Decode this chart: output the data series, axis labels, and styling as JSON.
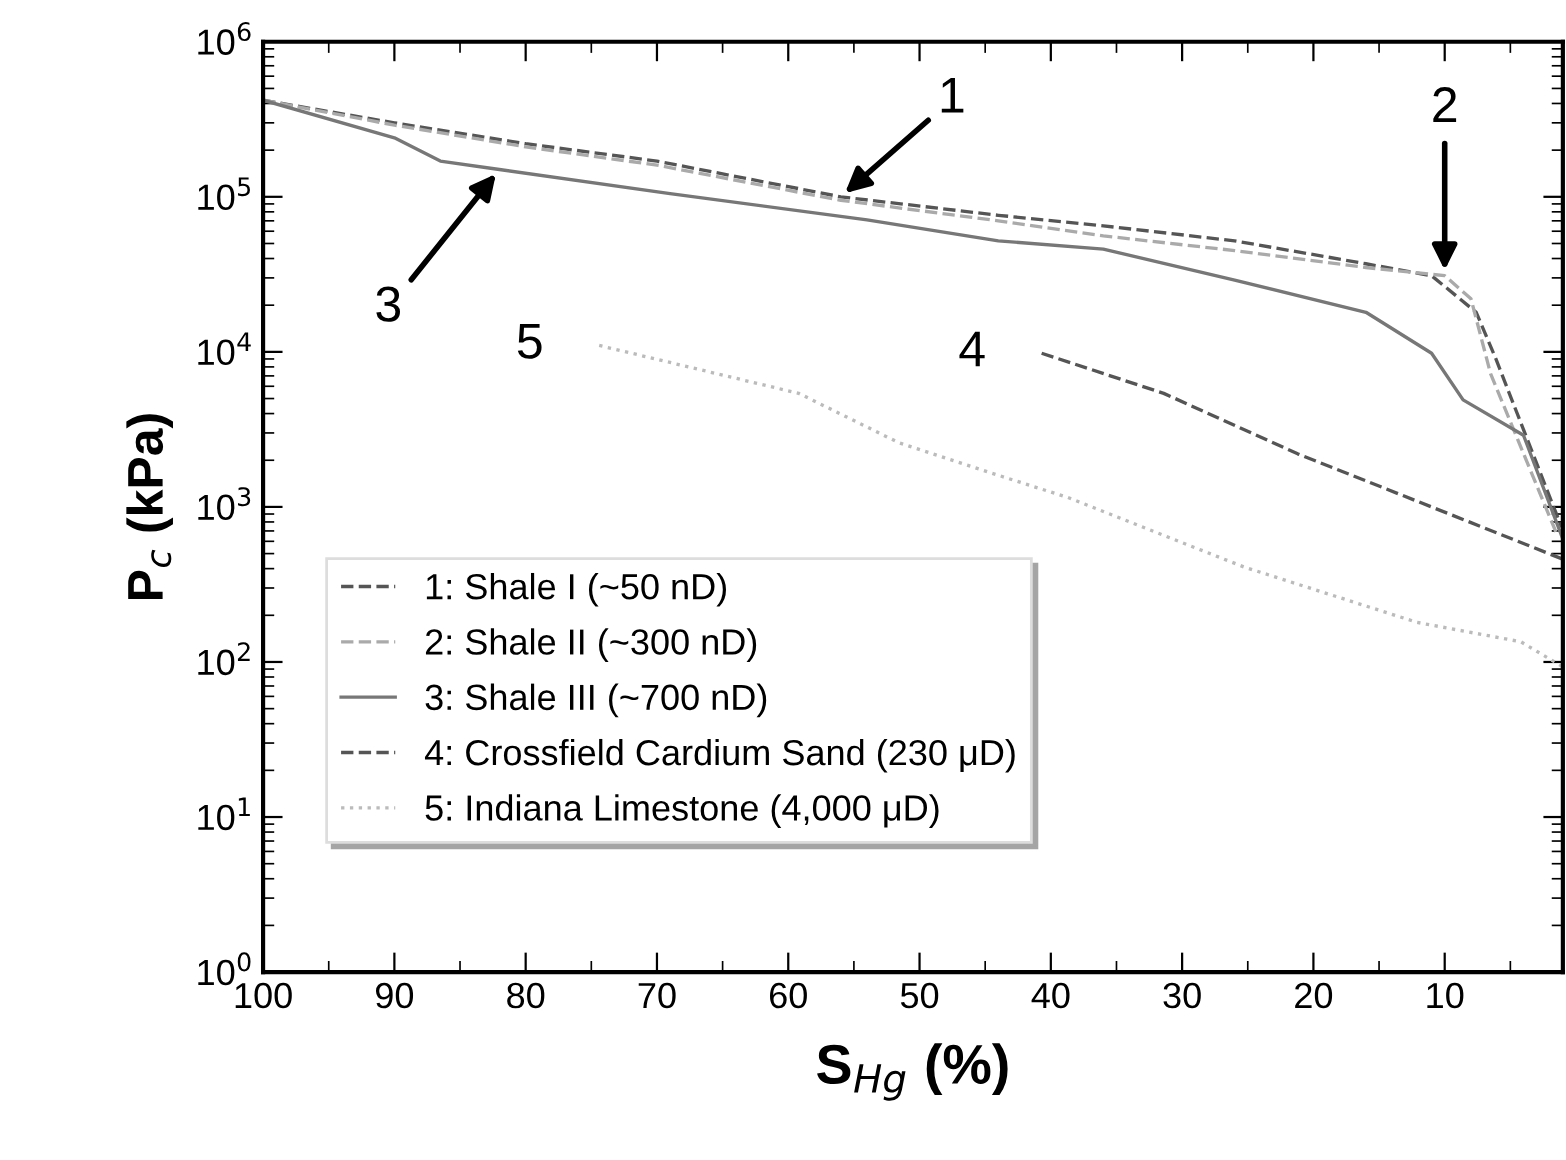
{
  "chart_data": {
    "type": "line",
    "xlabel": "S$_{Hg}$ (%)",
    "ylabel": "P$_{c}$ (kPa)",
    "log": "y",
    "xlim": [
      100,
      1
    ],
    "xticks": [
      100,
      90,
      80,
      70,
      60,
      50,
      40,
      30,
      20,
      10
    ],
    "ylim": [
      1,
      1000000
    ],
    "yticks": [
      {
        "value": 1,
        "label": "10$^{0}$"
      },
      {
        "value": 10,
        "label": "10$^{1}$"
      },
      {
        "value": 100,
        "label": "10$^{2}$"
      },
      {
        "value": 1000,
        "label": "10$^{3}$"
      },
      {
        "value": 10000,
        "label": "10$^{4}$"
      },
      {
        "value": 100000,
        "label": "10$^{5}$"
      },
      {
        "value": 1000000,
        "label": "10$^{6}$"
      }
    ],
    "grid": false,
    "legend": "bottom left",
    "marker": "none",
    "series": [
      {
        "name": "1: Shale I (~50 nD)",
        "color": "#555555",
        "line_style": "dashed",
        "x": [
          100,
          90,
          80,
          70,
          56,
          44,
          36,
          26,
          16,
          11,
          7.6,
          6.1,
          1.1
        ],
        "values": [
          420000,
          300000,
          220000,
          170000,
          100000,
          76000,
          65000,
          52000,
          37000,
          31000,
          18000,
          9000,
          740
        ]
      },
      {
        "name": "2: Shale II (~300 nD)",
        "color": "#aaaaaa",
        "line_style": "dashed",
        "x": [
          100,
          90,
          80,
          70,
          56,
          44,
          36,
          26,
          16,
          10,
          8,
          6.5,
          1.5
        ],
        "values": [
          420000,
          290000,
          210000,
          160000,
          95000,
          70000,
          56000,
          45000,
          35000,
          31000,
          22000,
          7200,
          680
        ]
      },
      {
        "name": "3: Shale III (~700 nD)",
        "color": "#777777",
        "line_style": "solid",
        "x": [
          100,
          90,
          86.5,
          82,
          69,
          54,
          44,
          36,
          26,
          16,
          11,
          8.6,
          4,
          1
        ],
        "values": [
          420000,
          240000,
          170000,
          150000,
          105000,
          71000,
          52000,
          46000,
          29000,
          18000,
          9800,
          4900,
          2900,
          620
        ]
      },
      {
        "name": "4: Crossfield Cardium Sand (230 μD)",
        "color": "#555555",
        "line_style": "dashed",
        "x": [
          40.7,
          31.4,
          21.2,
          11,
          1
        ],
        "values": [
          9800,
          5400,
          2200,
          1000,
          460
        ]
      },
      {
        "name": "5: Indiana Limestone (4,000 μD)",
        "color": "#bbbbbb",
        "line_style": "dotted",
        "x": [
          74.4,
          59.2,
          51.6,
          44,
          38.7,
          25.3,
          12.1,
          4.2,
          1
        ],
        "values": [
          11000,
          5400,
          2600,
          1600,
          1150,
          410,
          180,
          135,
          93
        ]
      }
    ],
    "annotations": [
      {
        "text": "1",
        "x": 56,
        "y": 100000
      },
      {
        "text": "2",
        "x": 10,
        "y": 31000
      },
      {
        "text": "3",
        "x": 82,
        "y": 150000
      },
      {
        "text": "4",
        "x": 40.7,
        "y": 9800
      },
      {
        "text": "5",
        "x": 74.4,
        "y": 11000
      }
    ]
  }
}
